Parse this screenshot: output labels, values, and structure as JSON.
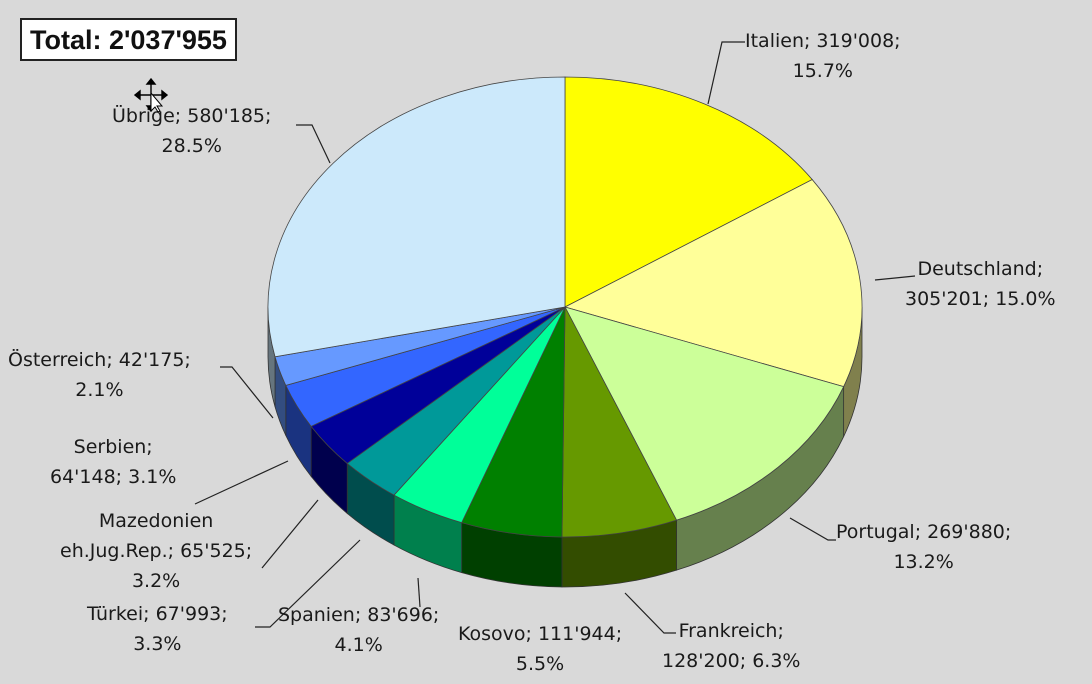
{
  "total_box": {
    "text": "Total: 2'037'955"
  },
  "chart_data": {
    "type": "pie",
    "style": "3d",
    "total_text": "Total: 2'037'955",
    "slices": [
      {
        "label": "Italien",
        "value": 319008,
        "value_text": "319'008",
        "percent": 15.7,
        "color": "#ffff00",
        "label_lines": [
          "Italien; 319'008;",
          "15.7%"
        ]
      },
      {
        "label": "Deutschland",
        "value": 305201,
        "value_text": "305'201",
        "percent": 15.0,
        "color": "#ffff99",
        "label_lines": [
          "Deutschland;",
          "305'201; 15.0%"
        ]
      },
      {
        "label": "Portugal",
        "value": 269880,
        "value_text": "269'880",
        "percent": 13.2,
        "color": "#ccff99",
        "label_lines": [
          "Portugal; 269'880;",
          "13.2%"
        ]
      },
      {
        "label": "Frankreich",
        "value": 128200,
        "value_text": "128'200",
        "percent": 6.3,
        "color": "#669900",
        "label_lines": [
          "Frankreich;",
          "128'200; 6.3%"
        ]
      },
      {
        "label": "Kosovo",
        "value": 111944,
        "value_text": "111'944",
        "percent": 5.5,
        "color": "#008000",
        "label_lines": [
          "Kosovo; 111'944;",
          "5.5%"
        ]
      },
      {
        "label": "Spanien",
        "value": 83696,
        "value_text": "83'696",
        "percent": 4.1,
        "color": "#00ff99",
        "label_lines": [
          "Spanien; 83'696;",
          "4.1%"
        ]
      },
      {
        "label": "Türkei",
        "value": 67993,
        "value_text": "67'993",
        "percent": 3.3,
        "color": "#009999",
        "label_lines": [
          "Türkei; 67'993;",
          "3.3%"
        ]
      },
      {
        "label": "Mazedonien eh.Jug.Rep.",
        "value": 65525,
        "value_text": "65'525",
        "percent": 3.2,
        "color": "#000099",
        "label_lines": [
          "Mazedonien",
          "eh.Jug.Rep.; 65'525;",
          "3.2%"
        ]
      },
      {
        "label": "Serbien",
        "value": 64148,
        "value_text": "64'148",
        "percent": 3.1,
        "color": "#3366ff",
        "label_lines": [
          "Serbien;",
          "64'148; 3.1%"
        ]
      },
      {
        "label": "Österreich",
        "value": 42175,
        "value_text": "42'175",
        "percent": 2.1,
        "color": "#6699ff",
        "label_lines": [
          "Österreich; 42'175;",
          "2.1%"
        ]
      },
      {
        "label": "Übrige",
        "value": 580185,
        "value_text": "580'185",
        "percent": 28.5,
        "color": "#cce9fb",
        "label_lines": [
          "Übrige; 580'185;",
          "28.5%"
        ]
      }
    ]
  }
}
